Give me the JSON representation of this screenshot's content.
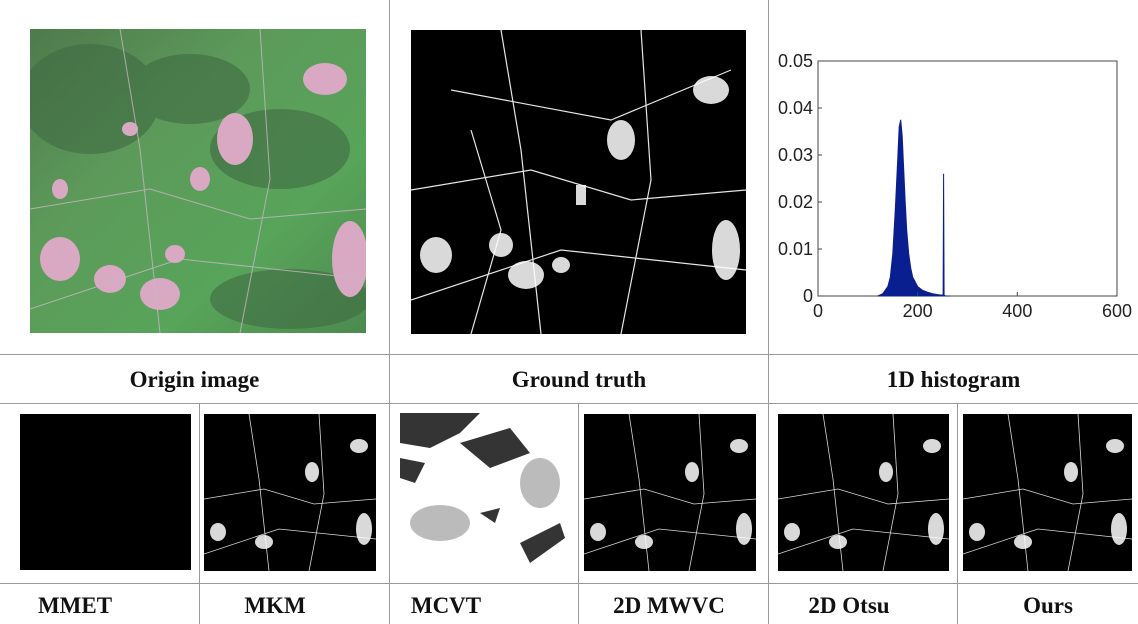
{
  "figure": {
    "captions_top": [
      "Origin image",
      "Ground truth",
      "1D histogram"
    ],
    "captions_bottom": [
      "MMET",
      "MKM",
      "MCVT",
      "2D MWVC",
      "2D Otsu",
      "Ours"
    ]
  },
  "chart_data": {
    "type": "area",
    "title": "",
    "xlabel": "",
    "ylabel": "",
    "xlim": [
      0,
      600
    ],
    "ylim": [
      0,
      0.05
    ],
    "xticks": [
      0,
      200,
      400,
      600
    ],
    "yticks": [
      0,
      0.01,
      0.02,
      0.03,
      0.04,
      0.05
    ],
    "grid": false,
    "color": "#0a1f8f",
    "series": [
      {
        "x": [
          120,
          130,
          140,
          145,
          150,
          155,
          160,
          163,
          166,
          169,
          172,
          175,
          178,
          182,
          186,
          190,
          195,
          200,
          210,
          220,
          230,
          240,
          248,
          251,
          252,
          253,
          256,
          265
        ],
        "values": [
          0,
          0.0005,
          0.002,
          0.004,
          0.009,
          0.018,
          0.029,
          0.036,
          0.0375,
          0.034,
          0.027,
          0.02,
          0.014,
          0.009,
          0.006,
          0.004,
          0.003,
          0.002,
          0.0012,
          0.0008,
          0.0005,
          0.0003,
          0.0002,
          0.0002,
          0.026,
          0.0002,
          0,
          0
        ]
      }
    ]
  }
}
